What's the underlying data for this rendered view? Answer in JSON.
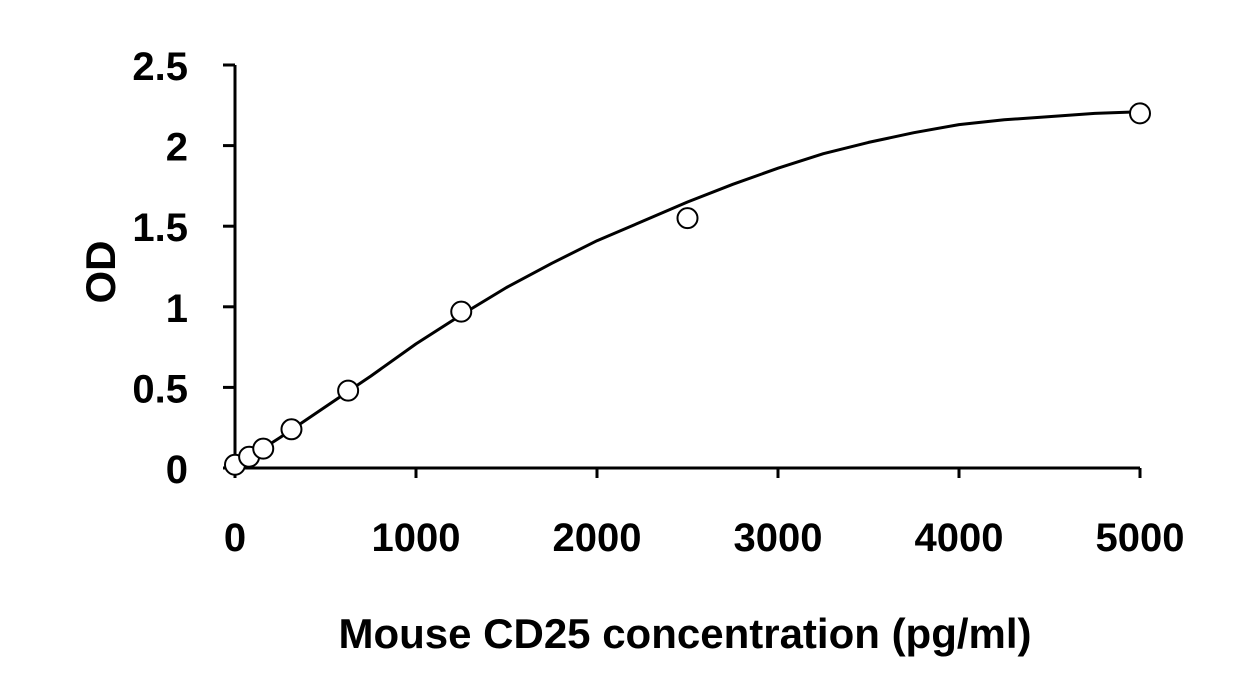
{
  "chart_data": {
    "type": "scatter",
    "title": "",
    "xlabel": "Mouse CD25 concentration (pg/ml)",
    "ylabel": "OD",
    "xlim": [
      0,
      5000
    ],
    "ylim": [
      0,
      2.5
    ],
    "x_ticks": [
      0,
      1000,
      2000,
      3000,
      4000,
      5000
    ],
    "x_tick_labels": [
      "0",
      "1000",
      "2000",
      "3000",
      "4000",
      "5000"
    ],
    "y_ticks": [
      0,
      0.5,
      1,
      1.5,
      2,
      2.5
    ],
    "y_tick_labels": [
      "0",
      "0.5",
      "1",
      "1.5",
      "2",
      "2.5"
    ],
    "grid": false,
    "legend": "none",
    "series": [
      {
        "marker": "open-circle",
        "x": [
          0,
          78,
          156,
          312,
          625,
          1250,
          2500,
          5000
        ],
        "y": [
          0.02,
          0.07,
          0.12,
          0.24,
          0.48,
          0.97,
          1.55,
          2.2
        ]
      }
    ],
    "fit_curve": {
      "style": "solid-line",
      "x": [
        0,
        250,
        500,
        750,
        1000,
        1250,
        1500,
        1750,
        2000,
        2250,
        2500,
        2750,
        3000,
        3250,
        3500,
        3750,
        4000,
        4250,
        4500,
        4750,
        5000
      ],
      "y": [
        0.01,
        0.19,
        0.38,
        0.57,
        0.77,
        0.95,
        1.12,
        1.27,
        1.41,
        1.53,
        1.65,
        1.76,
        1.86,
        1.95,
        2.02,
        2.08,
        2.13,
        2.16,
        2.18,
        2.2,
        2.21
      ]
    },
    "colors": {
      "axis": "#000000",
      "marker_stroke": "#000000",
      "marker_fill": "#ffffff",
      "curve": "#000000"
    }
  }
}
